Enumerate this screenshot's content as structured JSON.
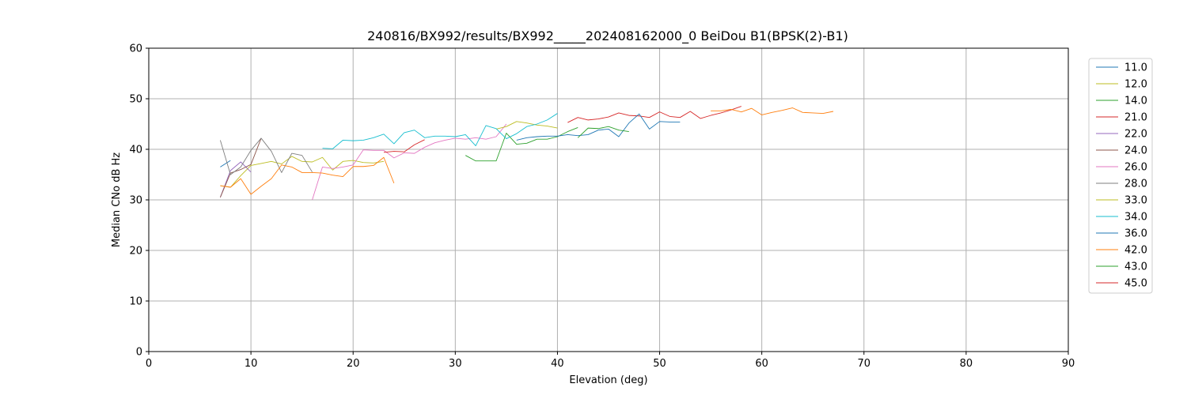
{
  "chart_data": {
    "type": "line",
    "title": "240816/BX992/results/BX992_____202408162000_0 BeiDou B1(BPSK(2)-B1)",
    "xlabel": "Elevation (deg)",
    "ylabel": "Median CNo dB Hz",
    "xlim": [
      0,
      90
    ],
    "ylim": [
      0,
      60
    ],
    "xticks": [
      0,
      10,
      20,
      30,
      40,
      50,
      60,
      70,
      80,
      90
    ],
    "yticks": [
      0,
      10,
      20,
      30,
      40,
      50,
      60
    ],
    "grid": true,
    "legend_position": "right",
    "series": [
      {
        "name": "11.0",
        "color": "#1f77b4",
        "x": [
          7,
          8
        ],
        "y": [
          36.5,
          37.8
        ]
      },
      {
        "name": "12.0",
        "color": "#bcbd22",
        "x": [
          7,
          8,
          9,
          10,
          11,
          12,
          13,
          14,
          15,
          16,
          17,
          18,
          19,
          20,
          21,
          22,
          23
        ],
        "y": [
          32.8,
          32.5,
          34.8,
          36.8,
          37.2,
          37.6,
          37.1,
          38.6,
          37.6,
          37.5,
          38.4,
          35.9,
          37.6,
          37.8,
          37.4,
          37.3,
          37.6
        ]
      },
      {
        "name": "14.0",
        "color": "#2ca02c",
        "x": [
          31,
          32,
          33,
          34,
          35,
          36,
          37,
          38,
          39,
          40,
          41,
          42
        ],
        "y": [
          38.8,
          37.7,
          37.7,
          37.7,
          43.2,
          41.0,
          41.2,
          42.0,
          42.0,
          42.5,
          43.5,
          44.3
        ]
      },
      {
        "name": "21.0",
        "color": "#d62728",
        "x": [
          41,
          42,
          43,
          44,
          45,
          46,
          47,
          48,
          49,
          50,
          51,
          52,
          53,
          54,
          55,
          56,
          57,
          58
        ],
        "y": [
          45.3,
          46.3,
          45.8,
          46.0,
          46.4,
          47.2,
          46.7,
          46.6,
          46.3,
          47.4,
          46.5,
          46.3,
          47.5,
          46.1,
          46.7,
          47.2,
          47.8,
          48.5
        ]
      },
      {
        "name": "22.0",
        "color": "#9467bd",
        "x": [
          7,
          8,
          9,
          10
        ],
        "y": [
          30.5,
          35.8,
          37.5,
          35.5
        ]
      },
      {
        "name": "24.0",
        "color": "#8c564b",
        "x": [
          7,
          8,
          9,
          10,
          11
        ],
        "y": [
          30.5,
          35.3,
          36.0,
          37.0,
          42.2
        ]
      },
      {
        "name": "26.0",
        "color": "#e377c2",
        "x": [
          16,
          17,
          18,
          19,
          20,
          21,
          22,
          23,
          24,
          25,
          26,
          27,
          28,
          29,
          30,
          31,
          32,
          33,
          34,
          35
        ],
        "y": [
          30.0,
          36.5,
          36.2,
          36.5,
          36.9,
          39.9,
          39.8,
          39.8,
          38.3,
          39.3,
          39.2,
          40.4,
          41.3,
          41.8,
          42.2,
          42.0,
          42.3,
          42.0,
          42.5,
          45.0
        ]
      },
      {
        "name": "28.0",
        "color": "#7f7f7f",
        "x": [
          7,
          8,
          9,
          10,
          11,
          12,
          13,
          14,
          15,
          16
        ],
        "y": [
          41.8,
          35.0,
          36.5,
          39.8,
          42.2,
          39.6,
          35.4,
          39.2,
          38.8,
          35.5
        ]
      },
      {
        "name": "33.0",
        "color": "#bcbd22",
        "x": [
          34,
          35,
          36,
          37,
          38,
          39,
          40
        ],
        "y": [
          44.0,
          44.5,
          45.5,
          45.2,
          44.8,
          44.6,
          44.2
        ]
      },
      {
        "name": "34.0",
        "color": "#17becf",
        "x": [
          17,
          18,
          19,
          20,
          21,
          22,
          23,
          24,
          25,
          26,
          27,
          28,
          29,
          30,
          31,
          32,
          33,
          34,
          35,
          36,
          37,
          38,
          39,
          40
        ],
        "y": [
          40.2,
          40.1,
          41.8,
          41.7,
          41.8,
          42.3,
          43.0,
          41.1,
          43.3,
          43.8,
          42.3,
          42.6,
          42.6,
          42.5,
          42.9,
          40.7,
          44.7,
          44.1,
          42.1,
          43.1,
          44.5,
          45.0,
          45.8,
          47.1
        ]
      },
      {
        "name": "36.0",
        "color": "#1f77b4",
        "x": [
          36,
          37,
          38,
          39,
          40,
          41,
          42,
          43,
          44,
          45,
          46,
          47,
          48,
          49,
          50,
          51,
          52
        ],
        "y": [
          41.8,
          42.3,
          42.5,
          42.6,
          42.6,
          42.9,
          42.7,
          42.9,
          43.8,
          44.0,
          42.5,
          45.2,
          47.0,
          44.0,
          45.5,
          45.4,
          45.4
        ]
      },
      {
        "name": "42.0",
        "color": "#ff7f0e",
        "x": [
          7,
          8,
          9,
          10,
          11,
          12,
          13,
          14,
          15,
          16,
          17,
          18,
          19,
          20,
          21,
          22,
          23,
          24,
          55,
          56,
          57,
          58,
          59,
          60,
          61,
          62,
          63,
          64,
          65,
          66,
          67
        ],
        "y": [
          32.8,
          32.5,
          34.2,
          31.1,
          32.7,
          34.2,
          36.9,
          36.5,
          35.4,
          35.4,
          35.3,
          34.9,
          34.6,
          36.6,
          36.6,
          36.8,
          38.4,
          33.3,
          47.6,
          47.6,
          47.9,
          47.4,
          48.1,
          46.8,
          47.3,
          47.7,
          48.2,
          47.3,
          47.2,
          47.1,
          47.5
        ]
      },
      {
        "name": "43.0",
        "color": "#2ca02c",
        "x": [
          42,
          43,
          44,
          45,
          46,
          47
        ],
        "y": [
          42.3,
          44.2,
          44.1,
          44.5,
          43.8,
          43.5
        ]
      },
      {
        "name": "45.0",
        "color": "#d62728",
        "x": [
          23,
          24,
          25,
          26,
          27
        ],
        "y": [
          39.4,
          39.6,
          39.5,
          40.9,
          41.9
        ]
      }
    ]
  }
}
